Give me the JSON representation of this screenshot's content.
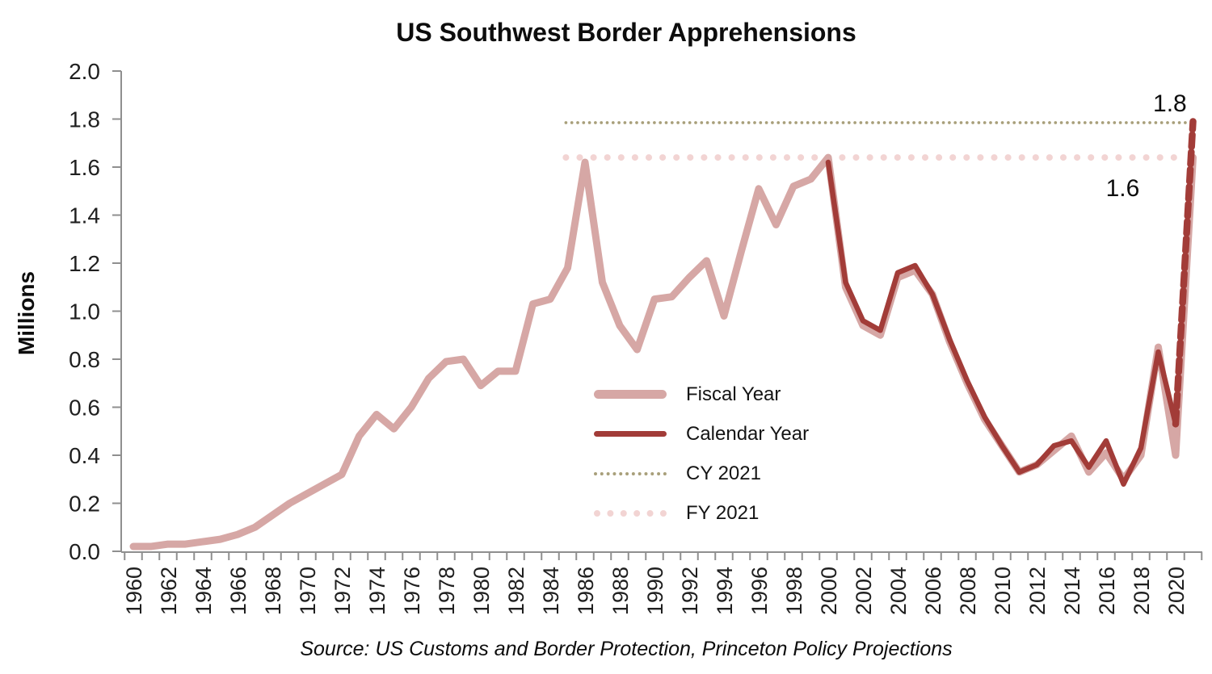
{
  "chart_data": {
    "type": "line",
    "title": "US Southwest Border Apprehensions",
    "ylabel": "Millions",
    "source": "Source: US Customs and Border Protection, Princeton Policy Projections",
    "ylim": [
      0,
      2.0
    ],
    "x_domain": [
      1960,
      2021
    ],
    "grid": false,
    "legend_position": "inside-center-right",
    "y_tick_labels": [
      "0.0",
      "0.2",
      "0.4",
      "0.6",
      "0.8",
      "1.0",
      "1.2",
      "1.4",
      "1.6",
      "1.8",
      "2.0"
    ],
    "x_tick_label_years": [
      1960,
      1962,
      1964,
      1966,
      1968,
      1970,
      1972,
      1974,
      1976,
      1978,
      1980,
      1982,
      1984,
      1986,
      1988,
      1990,
      1992,
      1994,
      1996,
      1998,
      2000,
      2002,
      2004,
      2006,
      2008,
      2010,
      2012,
      2014,
      2016,
      2018,
      2020
    ],
    "series": [
      {
        "id": "fiscal-year",
        "name": "Fiscal Year",
        "color": "#d6a7a5",
        "style": "solid",
        "width": 9,
        "years": [
          1960,
          1961,
          1962,
          1963,
          1964,
          1965,
          1966,
          1967,
          1968,
          1969,
          1970,
          1971,
          1972,
          1973,
          1974,
          1975,
          1976,
          1977,
          1978,
          1979,
          1980,
          1981,
          1982,
          1983,
          1984,
          1985,
          1986,
          1987,
          1988,
          1989,
          1990,
          1991,
          1992,
          1993,
          1994,
          1995,
          1996,
          1997,
          1998,
          1999,
          2000,
          2001,
          2002,
          2003,
          2004,
          2005,
          2006,
          2007,
          2008,
          2009,
          2010,
          2011,
          2012,
          2013,
          2014,
          2015,
          2016,
          2017,
          2018,
          2019,
          2020,
          2021
        ],
        "values": [
          0.02,
          0.02,
          0.03,
          0.03,
          0.04,
          0.05,
          0.07,
          0.1,
          0.15,
          0.2,
          0.24,
          0.28,
          0.32,
          0.48,
          0.57,
          0.51,
          0.6,
          0.72,
          0.79,
          0.8,
          0.69,
          0.75,
          0.75,
          1.03,
          1.05,
          1.18,
          1.62,
          1.12,
          0.94,
          0.84,
          1.05,
          1.06,
          1.14,
          1.21,
          0.98,
          1.25,
          1.51,
          1.36,
          1.52,
          1.55,
          1.64,
          1.1,
          0.94,
          0.9,
          1.14,
          1.17,
          1.07,
          0.87,
          0.7,
          0.55,
          0.44,
          0.33,
          0.36,
          0.42,
          0.48,
          0.33,
          0.41,
          0.3,
          0.4,
          0.85,
          0.4,
          1.64
        ]
      },
      {
        "id": "calendar-year",
        "name": "Calendar Year",
        "color": "#a23c38",
        "style": "solid",
        "width": 6.5,
        "years": [
          2000,
          2001,
          2002,
          2003,
          2004,
          2005,
          2006,
          2007,
          2008,
          2009,
          2010,
          2011,
          2012,
          2013,
          2014,
          2015,
          2016,
          2017,
          2018,
          2019,
          2020
        ],
        "values": [
          1.62,
          1.12,
          0.96,
          0.92,
          1.16,
          1.19,
          1.07,
          0.88,
          0.71,
          0.56,
          0.44,
          0.33,
          0.36,
          0.44,
          0.46,
          0.35,
          0.46,
          0.28,
          0.43,
          0.83,
          0.53
        ]
      },
      {
        "id": "calendar-year-projection",
        "name": "Calendar Year 2021 projection",
        "color": "#a23c38",
        "style": "dashed",
        "width": 8.5,
        "years": [
          2020,
          2021
        ],
        "values": [
          0.53,
          1.79
        ]
      }
    ],
    "reference_lines": [
      {
        "id": "cy-2021",
        "name": "CY 2021",
        "value": 1.785,
        "label": "1.8",
        "color": "#a89f7a",
        "dot_size": 3.6,
        "dot_spacing": 7.2,
        "x_start_year": 1984.9,
        "x_end_year": 2020.6
      },
      {
        "id": "fy-2021",
        "name": "FY 2021",
        "value": 1.64,
        "label": "1.6",
        "color": "#f2d4d3",
        "dot_size": 8,
        "dot_spacing": 17,
        "x_start_year": 1984.9,
        "x_end_year": 2020.3
      }
    ]
  },
  "legend": {
    "items": [
      {
        "label": "Fiscal Year",
        "swatch": "fiscal",
        "color": "#d6a7a5"
      },
      {
        "label": "Calendar Year",
        "swatch": "calendar",
        "color": "#a23c38"
      },
      {
        "label": "CY 2021",
        "swatch": "dot-small",
        "color": "#a89f7a"
      },
      {
        "label": "FY 2021",
        "swatch": "dot-large",
        "color": "#f2d4d3"
      }
    ]
  },
  "colors": {
    "fiscal_year_line": "#d6a7a5",
    "calendar_year_line": "#a23c38",
    "cy_2021_dotted": "#a89f7a",
    "fy_2021_dotted": "#f2d4d3",
    "axis": "#8f8f8f",
    "tick_text": "#1f1f1f",
    "background": "#ffffff"
  }
}
